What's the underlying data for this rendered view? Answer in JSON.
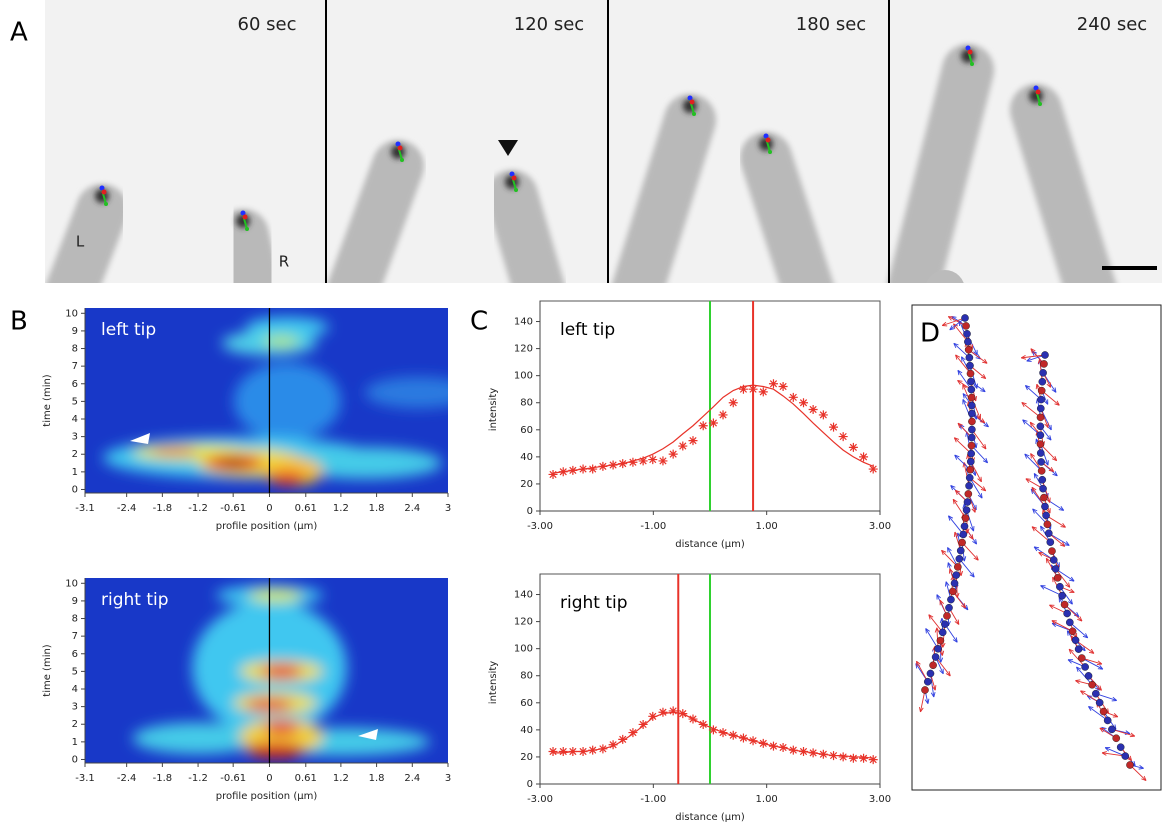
{
  "panel_labels": [
    "A",
    "B",
    "C",
    "D"
  ],
  "panel_a": {
    "time_labels": [
      "60 sec",
      "120 sec",
      "180 sec",
      "240 sec"
    ],
    "tip_labels": [
      "L",
      "R"
    ]
  },
  "chart_data": [
    {
      "type": "heatmap",
      "title": "left tip",
      "xlabel": "profile position (µm)",
      "ylabel": "time (min)",
      "xlim": [
        -3.1,
        3
      ],
      "ylim": [
        -0.2,
        10.3
      ],
      "xticks": [
        -3.1,
        -2.4,
        -1.8,
        -1.2,
        -0.61,
        0,
        0.61,
        1.2,
        1.8,
        2.4,
        3
      ],
      "yticks": [
        0,
        1,
        2,
        3,
        4,
        5,
        6,
        7,
        8,
        9,
        10
      ]
    },
    {
      "type": "heatmap",
      "title": "right tip",
      "xlabel": "profile position (µm)",
      "ylabel": "time (min)",
      "xlim": [
        -3.1,
        3
      ],
      "ylim": [
        -0.2,
        10.3
      ],
      "xticks": [
        -3.1,
        -2.4,
        -1.8,
        -1.2,
        -0.61,
        0,
        0.61,
        1.2,
        1.8,
        2.4,
        3
      ],
      "yticks": [
        0,
        1,
        2,
        3,
        4,
        5,
        6,
        7,
        8,
        9,
        10
      ]
    },
    {
      "type": "line",
      "title": "left tip",
      "xlabel": "distance (µm)",
      "ylabel": "intensity",
      "xlim": [
        -3,
        3
      ],
      "ylim": [
        0,
        150
      ],
      "xticks": [
        {
          "value": -3,
          "label": "-3.00"
        },
        {
          "value": -1,
          "label": "-1.00"
        },
        {
          "value": 1,
          "label": "1.00"
        },
        {
          "value": 3,
          "label": "3.00"
        }
      ],
      "yticks": [
        0,
        20,
        40,
        60,
        80,
        100,
        120,
        140
      ],
      "x": [
        -2.77,
        -2.59,
        -2.42,
        -2.24,
        -2.07,
        -1.89,
        -1.71,
        -1.54,
        -1.36,
        -1.18,
        -1.01,
        -0.83,
        -0.65,
        -0.48,
        -0.3,
        -0.12,
        0.06,
        0.23,
        0.41,
        0.59,
        0.76,
        0.94,
        1.12,
        1.29,
        1.47,
        1.65,
        1.82,
        2.0,
        2.18,
        2.35,
        2.53,
        2.71,
        2.88
      ],
      "series": [
        {
          "color": "#e8332a",
          "marker": "asterisk",
          "values": [
            27,
            29,
            30,
            31,
            31,
            33,
            34,
            35,
            36,
            37,
            38,
            37,
            42,
            48,
            52,
            63,
            65,
            71,
            80,
            90,
            90,
            88,
            94,
            92,
            84,
            80,
            75,
            71,
            62,
            55,
            47,
            40,
            31
          ]
        },
        {
          "color": "#e8332a",
          "marker": "line",
          "values": [
            28,
            29,
            30,
            31,
            32,
            33,
            34,
            35,
            37,
            39,
            42,
            46,
            51,
            57,
            63,
            70,
            77,
            84,
            89,
            92,
            93,
            92,
            90,
            85,
            79,
            72,
            65,
            58,
            51,
            45,
            40,
            36,
            33
          ]
        }
      ],
      "vlines": [
        {
          "x": 0,
          "color": "#2fd12f"
        },
        {
          "x": 0.76,
          "color": "#e8332a"
        }
      ]
    },
    {
      "type": "line",
      "title": "right tip",
      "xlabel": "distance (µm)",
      "ylabel": "intensity",
      "xlim": [
        -3,
        3
      ],
      "ylim": [
        0,
        150
      ],
      "xticks": [
        {
          "value": -3,
          "label": "-3.00"
        },
        {
          "value": -1,
          "label": "-1.00"
        },
        {
          "value": 1,
          "label": "1.00"
        },
        {
          "value": 3,
          "label": "3.00"
        }
      ],
      "yticks": [
        0,
        20,
        40,
        60,
        80,
        100,
        120,
        140
      ],
      "x": [
        -2.77,
        -2.59,
        -2.42,
        -2.24,
        -2.07,
        -1.89,
        -1.71,
        -1.54,
        -1.36,
        -1.18,
        -1.01,
        -0.83,
        -0.65,
        -0.48,
        -0.3,
        -0.12,
        0.06,
        0.23,
        0.41,
        0.59,
        0.76,
        0.94,
        1.12,
        1.29,
        1.47,
        1.65,
        1.82,
        2.0,
        2.18,
        2.35,
        2.53,
        2.71,
        2.88
      ],
      "series": [
        {
          "color": "#e8332a",
          "marker": "asterisk",
          "values": [
            24,
            24,
            24,
            24,
            25,
            26,
            29,
            33,
            38,
            44,
            50,
            53,
            54,
            52,
            48,
            44,
            40,
            38,
            36,
            34,
            32,
            30,
            28,
            27,
            25,
            24,
            23,
            22,
            21,
            20,
            19,
            19,
            18
          ]
        },
        {
          "color": "#e8332a",
          "marker": "line",
          "values": [
            23,
            23,
            24,
            24,
            25,
            26,
            28,
            32,
            37,
            43,
            49,
            52,
            53,
            52,
            48,
            44,
            41,
            38,
            36,
            34,
            32,
            30,
            28,
            27,
            25,
            24,
            23,
            22,
            21,
            21,
            20,
            20,
            19
          ]
        }
      ],
      "vlines": [
        {
          "x": -0.56,
          "color": "#e8332a"
        },
        {
          "x": 0,
          "color": "#2fd12f"
        }
      ]
    }
  ]
}
